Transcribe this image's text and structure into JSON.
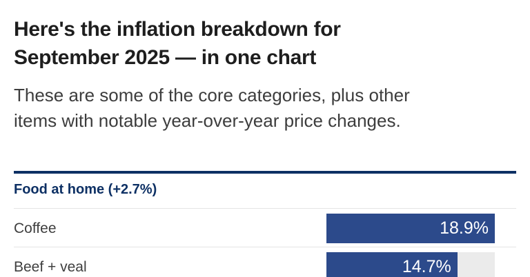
{
  "header": {
    "title_line1": "Here's the inflation breakdown for",
    "title_line2": "September 2025 — in one chart",
    "subtitle_line1": "These are some of the core categories, plus other",
    "subtitle_line2": "items with notable year-over-year price changes."
  },
  "chart_data": {
    "type": "bar",
    "orientation": "horizontal",
    "title": "Here's the inflation breakdown for September 2025 — in one chart",
    "subtitle": "These are some of the core categories, plus other items with notable year-over-year price changes.",
    "section_label": "Food at home (+2.7%)",
    "section_change": "+2.7%",
    "categories": [
      "Coffee",
      "Beef + veal"
    ],
    "values": [
      18.9,
      14.7
    ],
    "value_labels": [
      "18.9%",
      "14.7%"
    ],
    "xlim": [
      0,
      18.9
    ],
    "grid": false,
    "legend": false,
    "bar_color": "#2c4a8b",
    "track_color": "#ebebeb",
    "section_color": "#0d3064"
  }
}
